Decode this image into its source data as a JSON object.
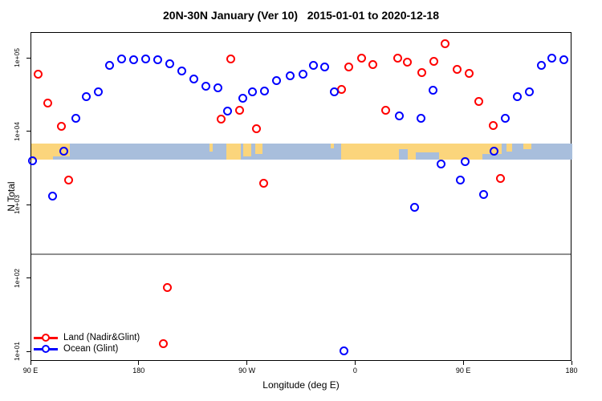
{
  "chart_data": {
    "type": "scatter",
    "title": "20N-30N January (Ver 10)   2015-01-01 to 2020-12-18",
    "xlabel": "Longitude (deg E)",
    "ylabel": "N Total",
    "grid": false,
    "legend_position": "bottom-left-inside",
    "x_axis": {
      "range": [
        90,
        540
      ],
      "ticks": [
        90,
        180,
        270,
        360,
        450,
        540
      ],
      "tick_labels": [
        "90 E",
        "180",
        "90 W",
        "0",
        "90 E",
        "180"
      ]
    },
    "y_axis": {
      "scale": "log",
      "ylim": [
        7.4,
        224000
      ],
      "ticks": [
        100000,
        10000,
        1000,
        100,
        10
      ],
      "tick_labels": [
        "1e+05",
        "1e+04",
        "1e+03",
        "1e+02",
        "1e+01"
      ]
    },
    "reference_line": {
      "value": 215,
      "color": "#909090"
    },
    "map_band": {
      "description": "land/ocean strip for 20N-30N latitude band",
      "top_value": 6900,
      "bottom_value": 4200,
      "ocean_color": "#A8BEDC",
      "land_color": "#FBD57C",
      "segments": [
        {
          "s": 90,
          "e": 122,
          "t": 0,
          "h": 1,
          "type": "land"
        },
        {
          "s": 108,
          "e": 128,
          "t": 0.78,
          "h": 0.22,
          "type": "ocean"
        },
        {
          "s": 238,
          "e": 241,
          "t": 0,
          "h": 0.5,
          "type": "land"
        },
        {
          "s": 252,
          "e": 264,
          "t": 0,
          "h": 1,
          "type": "land"
        },
        {
          "s": 266,
          "e": 273,
          "t": 0,
          "h": 0.8,
          "type": "land"
        },
        {
          "s": 276,
          "e": 282,
          "t": 0,
          "h": 0.65,
          "type": "land"
        },
        {
          "s": 339,
          "e": 342,
          "t": 0,
          "h": 0.3,
          "type": "land"
        },
        {
          "s": 348,
          "e": 465,
          "t": 0,
          "h": 1,
          "type": "land"
        },
        {
          "s": 396,
          "e": 403,
          "t": 0.35,
          "h": 0.65,
          "type": "ocean"
        },
        {
          "s": 410,
          "e": 429,
          "t": 0.55,
          "h": 0.45,
          "type": "ocean"
        },
        {
          "s": 465,
          "e": 481,
          "t": 0,
          "h": 0.65,
          "type": "land"
        },
        {
          "s": 485,
          "e": 490,
          "t": 0,
          "h": 0.5,
          "type": "land"
        },
        {
          "s": 499,
          "e": 506,
          "t": 0,
          "h": 0.35,
          "type": "land"
        }
      ]
    },
    "series": [
      {
        "name": "Land (Nadir&Glint)",
        "color": "#FF0000",
        "points": [
          [
            96,
            62000
          ],
          [
            104,
            25000
          ],
          [
            115,
            12000
          ],
          [
            121,
            2200
          ],
          [
            200,
            13
          ],
          [
            203,
            75
          ],
          [
            248,
            15000
          ],
          [
            256,
            100000
          ],
          [
            263,
            20000
          ],
          [
            277,
            11000
          ],
          [
            283,
            2000
          ],
          [
            348,
            38000
          ],
          [
            354,
            76000
          ],
          [
            365,
            102000
          ],
          [
            374,
            83000
          ],
          [
            385,
            20000
          ],
          [
            395,
            102000
          ],
          [
            403,
            89000
          ],
          [
            415,
            65000
          ],
          [
            425,
            91000
          ],
          [
            434,
            158000
          ],
          [
            444,
            72000
          ],
          [
            454,
            63000
          ],
          [
            462,
            26000
          ],
          [
            474,
            12300
          ],
          [
            480,
            2300
          ]
        ]
      },
      {
        "name": "Ocean (Glint)",
        "color": "#0000FF",
        "points": [
          [
            91,
            4000
          ],
          [
            108,
            1350
          ],
          [
            117,
            5500
          ],
          [
            127,
            15500
          ],
          [
            136,
            30000
          ],
          [
            146,
            35500
          ],
          [
            155,
            80000
          ],
          [
            165,
            100000
          ],
          [
            175,
            97500
          ],
          [
            185,
            100000
          ],
          [
            195,
            97500
          ],
          [
            205,
            86000
          ],
          [
            215,
            67000
          ],
          [
            225,
            53000
          ],
          [
            235,
            42000
          ],
          [
            245,
            40000
          ],
          [
            253,
            19500
          ],
          [
            266,
            28500
          ],
          [
            274,
            35500
          ],
          [
            284,
            36500
          ],
          [
            294,
            50000
          ],
          [
            305,
            59000
          ],
          [
            316,
            62000
          ],
          [
            325,
            80000
          ],
          [
            334,
            76000
          ],
          [
            342,
            35500
          ],
          [
            350,
            10.5
          ],
          [
            396,
            16700
          ],
          [
            409,
            930
          ],
          [
            414,
            15500
          ],
          [
            424,
            37000
          ],
          [
            431,
            3700
          ],
          [
            447,
            2200
          ],
          [
            451,
            3900
          ],
          [
            466,
            1390
          ],
          [
            475,
            5500
          ],
          [
            484,
            15500
          ],
          [
            494,
            30000
          ],
          [
            504,
            35500
          ],
          [
            514,
            80000
          ],
          [
            523,
            102000
          ],
          [
            533,
            97500
          ]
        ]
      }
    ]
  }
}
